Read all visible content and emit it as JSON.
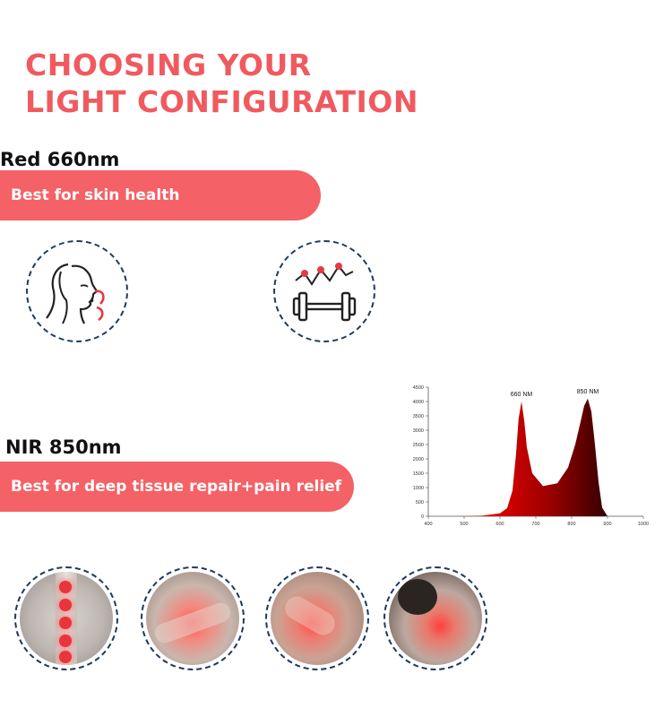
{
  "header": {
    "title_line1": "CHOOSING YOUR",
    "title_line2": "LIGHT CONFIGURATION"
  },
  "red_section": {
    "label": "Red 660nm",
    "benefit": "Best for skin health",
    "icons": [
      "face-skin-icon",
      "dumbbell-heartrate-icon"
    ]
  },
  "nir_section": {
    "label": "NIR 850nm",
    "benefit": "Best for deep tissue repair+pain relief",
    "photos": [
      "spine-photo",
      "knee-photo",
      "shoulder-photo",
      "neck-photo"
    ]
  },
  "colors": {
    "accent": "#f46166",
    "title": "#f05a5f",
    "dash": "#1e3a5f"
  },
  "chart_data": {
    "type": "area",
    "title": "",
    "xlabel": "",
    "ylabel": "",
    "xlim": [
      400,
      1000
    ],
    "ylim": [
      0,
      4500
    ],
    "x_ticks": [
      400,
      500,
      600,
      700,
      800,
      900,
      1000
    ],
    "y_ticks": [
      0,
      500,
      1000,
      1500,
      2000,
      2500,
      3000,
      3500,
      4000,
      4500
    ],
    "annotations": [
      {
        "text": "660 NM",
        "x": 660,
        "y": 4000
      },
      {
        "text": "850 NM",
        "x": 845,
        "y": 4100
      }
    ],
    "series": [
      {
        "x": [
          400,
          500,
          550,
          600,
          620,
          635,
          645,
          652,
          660,
          668,
          675,
          690,
          720,
          760,
          790,
          810,
          825,
          835,
          845,
          855,
          865,
          875,
          885,
          900,
          1000
        ],
        "values": [
          0,
          0,
          20,
          100,
          280,
          900,
          2200,
          3400,
          4000,
          3300,
          2400,
          1500,
          1050,
          1150,
          1700,
          2500,
          3300,
          3850,
          4100,
          3650,
          2500,
          1200,
          300,
          0,
          0
        ]
      }
    ]
  }
}
